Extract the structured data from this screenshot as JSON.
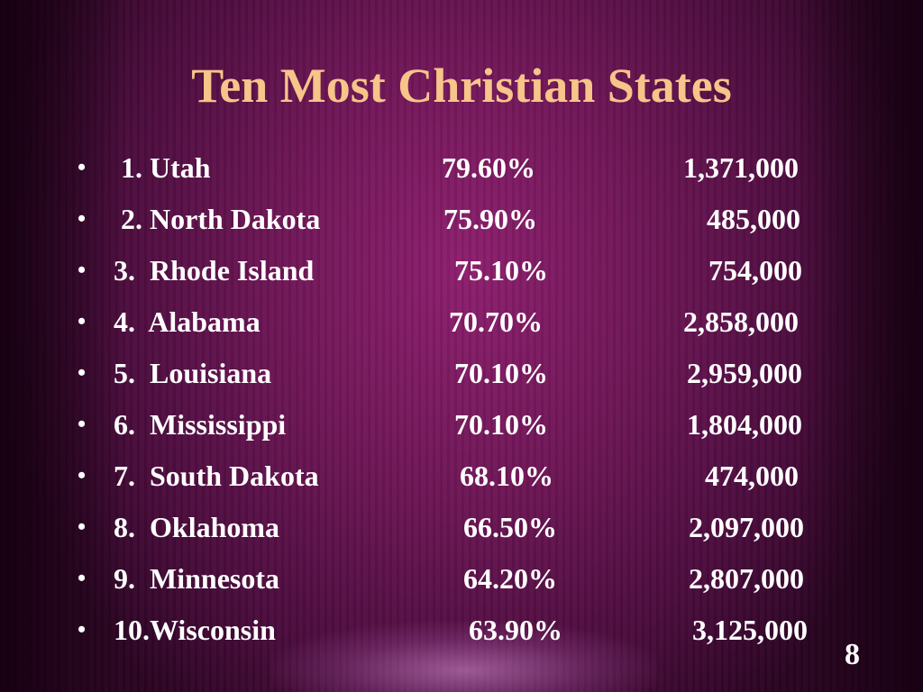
{
  "slide": {
    "title": "Ten Most Christian States",
    "page_number": "8",
    "rows": [
      {
        "name": " 1. Utah",
        "percent": "79.60%",
        "population": "1,371,000"
      },
      {
        "name": " 2. North Dakota",
        "percent": "75.90%",
        "population": "485,000"
      },
      {
        "name": "3.  Rhode Island",
        "percent": "75.10%",
        "population": "754,000"
      },
      {
        "name": "4.  Alabama",
        "percent": "70.70%",
        "population": "2,858,000"
      },
      {
        "name": "5.  Louisiana",
        "percent": "70.10%",
        "population": "2,959,000"
      },
      {
        "name": "6.  Mississippi",
        "percent": "70.10%",
        "population": "1,804,000"
      },
      {
        "name": "7.  South Dakota",
        "percent": "68.10%",
        "population": "474,000"
      },
      {
        "name": "8.  Oklahoma",
        "percent": "66.50%",
        "population": "2,097,000"
      },
      {
        "name": "9.  Minnesota",
        "percent": "64.20%",
        "population": "2,807,000"
      },
      {
        "name": "10.Wisconsin",
        "percent": "63.90%",
        "population": "3,125,000"
      }
    ],
    "bullet_glyph": "•"
  }
}
